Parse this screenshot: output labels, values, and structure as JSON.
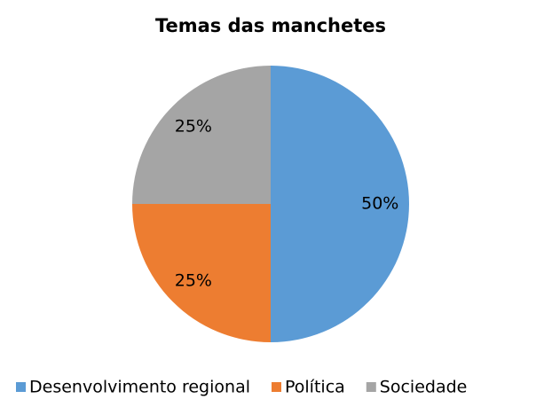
{
  "chart_data": {
    "type": "pie",
    "title": "Temas das manchetes",
    "categories": [
      "Desenvolvimento regional",
      "Política",
      "Sociedade"
    ],
    "values": [
      50,
      25,
      25
    ],
    "value_labels": [
      "50%",
      "25%",
      "25%"
    ],
    "colors": [
      "#5b9bd5",
      "#ed7d31",
      "#a5a5a5"
    ],
    "legend": "bottom"
  }
}
